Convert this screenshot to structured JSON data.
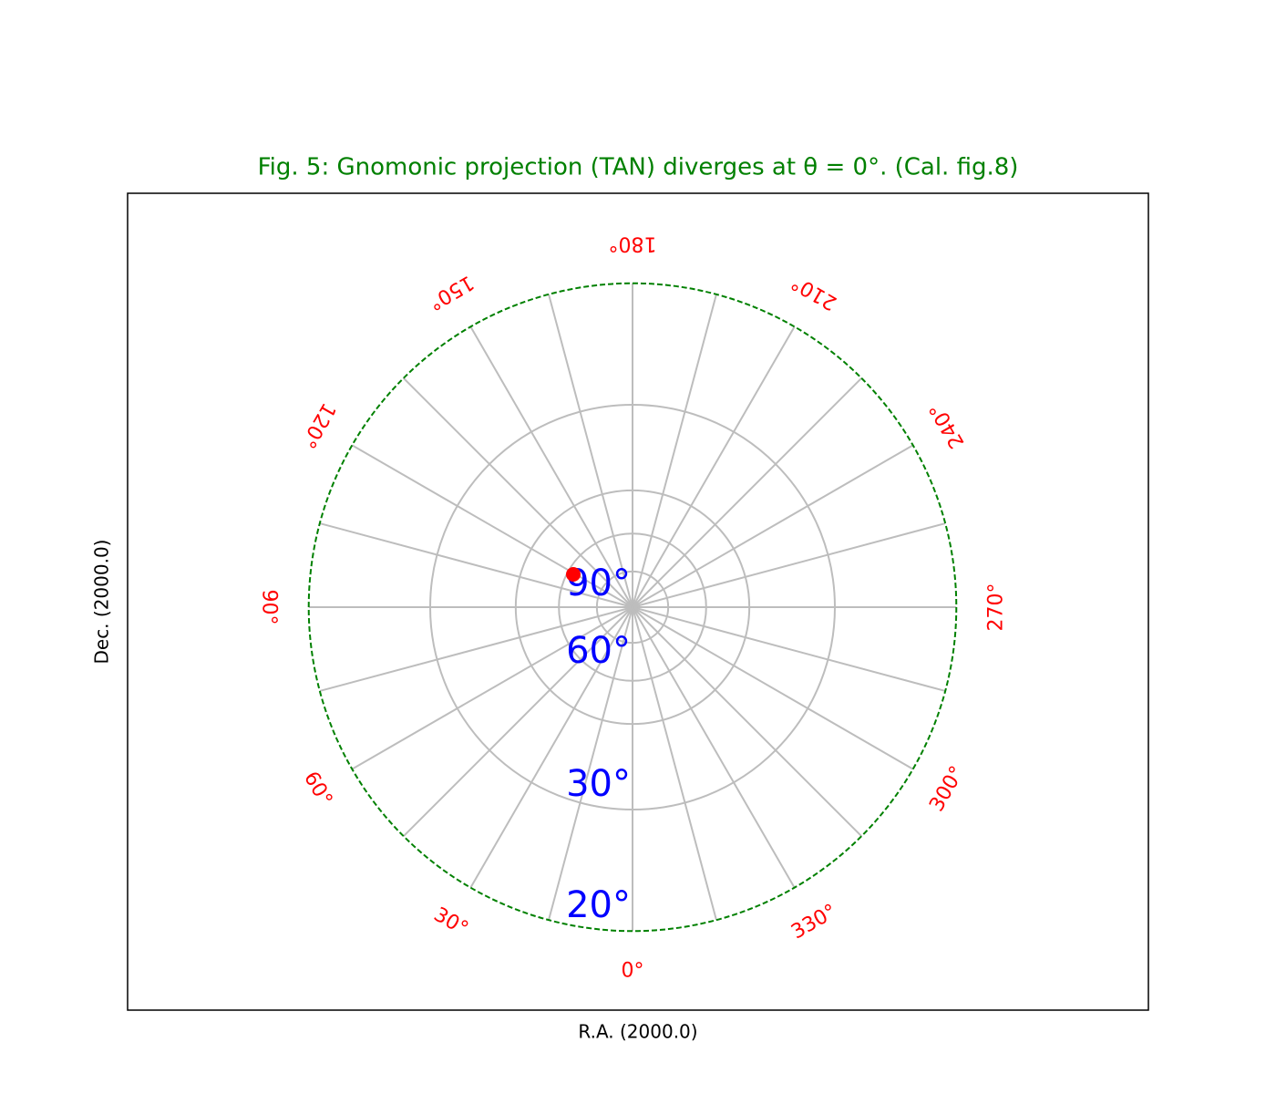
{
  "chart_data": {
    "type": "polar-projection",
    "title": "Fig. 5: Gnomonic projection (TAN) diverges at θ = 0°. (Cal. fig.8)",
    "x_label": "R.A. (2000.0)",
    "y_label": "Dec. (2000.0)",
    "ra_ticks": [
      {
        "value": 0,
        "label": "0°"
      },
      {
        "value": 30,
        "label": "30°"
      },
      {
        "value": 60,
        "label": "60°"
      },
      {
        "value": 90,
        "label": "90°"
      },
      {
        "value": 120,
        "label": "120°"
      },
      {
        "value": 150,
        "label": "150°"
      },
      {
        "value": 180,
        "label": "180°"
      },
      {
        "value": 210,
        "label": "210°"
      },
      {
        "value": 240,
        "label": "240°"
      },
      {
        "value": 270,
        "label": "270°"
      },
      {
        "value": 300,
        "label": "300°"
      },
      {
        "value": 330,
        "label": "330°"
      }
    ],
    "ra_grid": [
      0,
      15,
      30,
      45,
      60,
      75,
      90,
      105,
      120,
      135,
      150,
      165,
      180,
      195,
      210,
      225,
      240,
      255,
      270,
      285,
      300,
      315,
      330,
      345
    ],
    "dec_grid": [
      80,
      70,
      60,
      45
    ],
    "dec_limit": 32,
    "dec_ticks": [
      {
        "value": 90,
        "label": "90°"
      },
      {
        "value": 60,
        "label": "60°"
      },
      {
        "value": 30,
        "label": "30°"
      },
      {
        "value": 20,
        "label": "20°"
      }
    ],
    "grid_color": "#bdbdbd",
    "border_color": "#008000",
    "ra_label_color": "#ff0000",
    "dec_label_color": "#0000ff",
    "title_color": "#008000"
  }
}
